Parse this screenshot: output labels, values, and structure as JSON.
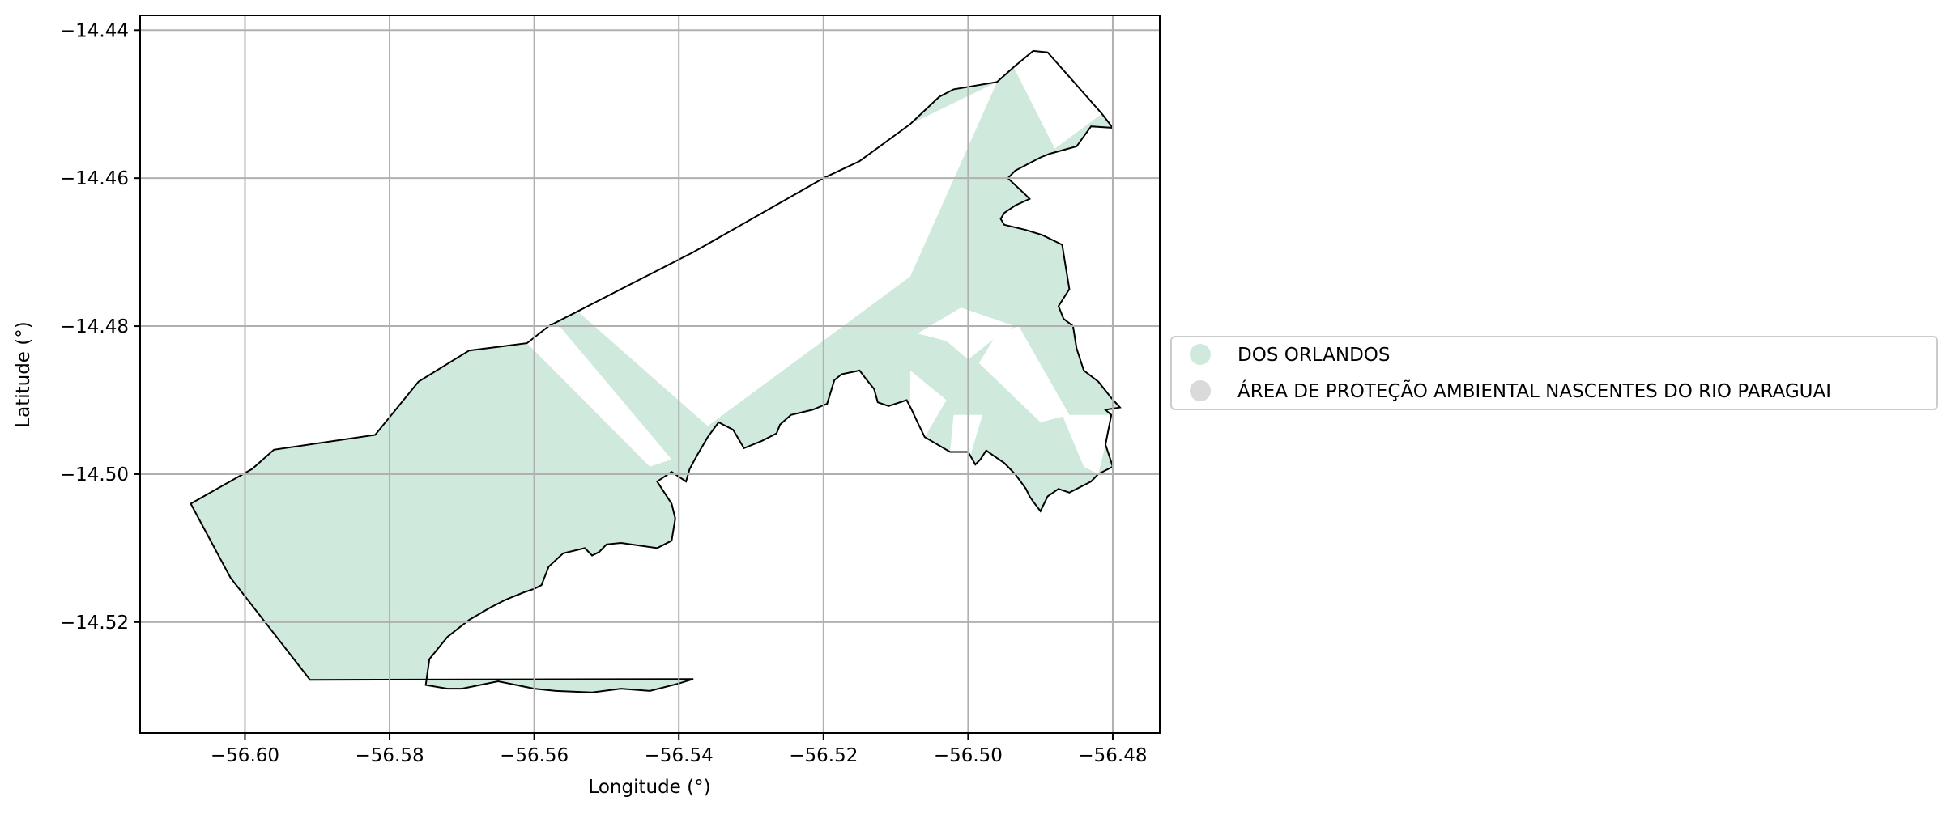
{
  "chart_data": {
    "type": "map",
    "xlabel": "Longitude (°)",
    "ylabel": "Latitude (°)",
    "xlim": [
      -56.6145,
      -56.4735
    ],
    "ylim": [
      -14.535,
      -14.438
    ],
    "xticks": [
      -56.6,
      -56.58,
      -56.56,
      -56.54,
      -56.52,
      -56.5,
      -56.48
    ],
    "yticks": [
      -14.44,
      -14.46,
      -14.48,
      -14.5,
      -14.52
    ],
    "xtick_labels": [
      "−56.60",
      "−56.58",
      "−56.56",
      "−56.54",
      "−56.52",
      "−56.50",
      "−56.48"
    ],
    "ytick_labels": [
      "−14.44",
      "−14.46",
      "−14.48",
      "−14.50",
      "−14.52"
    ],
    "grid": true,
    "legend_position": "right, outside plot",
    "legend": [
      {
        "label": "DOS ORLANDOS",
        "color": "#cfeadc"
      },
      {
        "label": "ÁREA DE PROTEÇÃO AMBIENTAL NASCENTES DO RIO PARAGUAI",
        "color": "#dadada"
      }
    ],
    "outline_color": "#000000",
    "fill_color": "#cfeadc",
    "outline": [
      [
        -56.6075,
        -14.504
      ],
      [
        -56.599,
        -14.4993
      ],
      [
        -56.596,
        -14.4967
      ],
      [
        -56.582,
        -14.4947
      ],
      [
        -56.576,
        -14.4875
      ],
      [
        -56.569,
        -14.4833
      ],
      [
        -56.561,
        -14.4823
      ],
      [
        -56.558,
        -14.48
      ],
      [
        -56.554,
        -14.478
      ],
      [
        -56.538,
        -14.47
      ],
      [
        -56.52,
        -14.46
      ],
      [
        -56.515,
        -14.4577
      ],
      [
        -56.508,
        -14.4527
      ],
      [
        -56.504,
        -14.449
      ],
      [
        -56.502,
        -14.448
      ],
      [
        -56.496,
        -14.447
      ],
      [
        -56.4937,
        -14.445
      ],
      [
        -56.491,
        -14.4428
      ],
      [
        -56.489,
        -14.443
      ],
      [
        -56.4815,
        -14.4513
      ],
      [
        -56.48,
        -14.4532
      ],
      [
        -56.483,
        -14.453
      ],
      [
        -56.485,
        -14.4557
      ],
      [
        -56.4887,
        -14.4567
      ],
      [
        -56.49,
        -14.4572
      ],
      [
        -56.4935,
        -14.459
      ],
      [
        -56.4945,
        -14.46
      ],
      [
        -56.492,
        -14.4623
      ],
      [
        -56.4915,
        -14.4628
      ],
      [
        -56.4935,
        -14.4637
      ],
      [
        -56.495,
        -14.4647
      ],
      [
        -56.4955,
        -14.4655
      ],
      [
        -56.495,
        -14.4663
      ],
      [
        -56.492,
        -14.467
      ],
      [
        -56.4897,
        -14.4677
      ],
      [
        -56.487,
        -14.469
      ],
      [
        -56.4865,
        -14.472
      ],
      [
        -56.486,
        -14.475
      ],
      [
        -56.4875,
        -14.4773
      ],
      [
        -56.4868,
        -14.479
      ],
      [
        -56.4855,
        -14.48
      ],
      [
        -56.485,
        -14.483
      ],
      [
        -56.484,
        -14.486
      ],
      [
        -56.482,
        -14.4875
      ],
      [
        -56.4802,
        -14.4897
      ],
      [
        -56.479,
        -14.491
      ],
      [
        -56.481,
        -14.4913
      ],
      [
        -56.4802,
        -14.492
      ],
      [
        -56.481,
        -14.496
      ],
      [
        -56.48,
        -14.499
      ],
      [
        -56.482,
        -14.5
      ],
      [
        -56.483,
        -14.501
      ],
      [
        -56.486,
        -14.5025
      ],
      [
        -56.4875,
        -14.502
      ],
      [
        -56.489,
        -14.503
      ],
      [
        -56.49,
        -14.505
      ],
      [
        -56.491,
        -14.5037
      ],
      [
        -56.4915,
        -14.503
      ],
      [
        -56.492,
        -14.502
      ],
      [
        -56.4935,
        -14.5
      ],
      [
        -56.495,
        -14.4985
      ],
      [
        -56.4965,
        -14.4975
      ],
      [
        -56.4975,
        -14.4968
      ],
      [
        -56.4983,
        -14.498
      ],
      [
        -56.499,
        -14.4987
      ],
      [
        -56.5,
        -14.497
      ],
      [
        -56.5025,
        -14.497
      ],
      [
        -56.506,
        -14.495
      ],
      [
        -56.507,
        -14.493
      ],
      [
        -56.5078,
        -14.4913
      ],
      [
        -56.5085,
        -14.49
      ],
      [
        -56.511,
        -14.4908
      ],
      [
        -56.5125,
        -14.4903
      ],
      [
        -56.513,
        -14.4885
      ],
      [
        -56.514,
        -14.4873
      ],
      [
        -56.515,
        -14.486
      ],
      [
        -56.5175,
        -14.4865
      ],
      [
        -56.5185,
        -14.4873
      ],
      [
        -56.5195,
        -14.4905
      ],
      [
        -56.5215,
        -14.4913
      ],
      [
        -56.5245,
        -14.492
      ],
      [
        -56.526,
        -14.4933
      ],
      [
        -56.5265,
        -14.4945
      ],
      [
        -56.5285,
        -14.4955
      ],
      [
        -56.531,
        -14.4965
      ],
      [
        -56.5325,
        -14.494
      ],
      [
        -56.5345,
        -14.493
      ],
      [
        -56.536,
        -14.495
      ],
      [
        -56.5375,
        -14.4975
      ],
      [
        -56.5385,
        -14.4993
      ],
      [
        -56.539,
        -14.501
      ],
      [
        -56.541,
        -14.4997
      ],
      [
        -56.543,
        -14.501
      ],
      [
        -56.541,
        -14.504
      ],
      [
        -56.5405,
        -14.506
      ],
      [
        -56.541,
        -14.509
      ],
      [
        -56.542,
        -14.5095
      ],
      [
        -56.543,
        -14.51
      ],
      [
        -56.548,
        -14.5093
      ],
      [
        -56.55,
        -14.5095
      ],
      [
        -56.551,
        -14.5105
      ],
      [
        -56.552,
        -14.511
      ],
      [
        -56.553,
        -14.51
      ],
      [
        -56.556,
        -14.5107
      ],
      [
        -56.558,
        -14.5125
      ],
      [
        -56.559,
        -14.515
      ],
      [
        -56.56,
        -14.5155
      ],
      [
        -56.5615,
        -14.516
      ],
      [
        -56.564,
        -14.517
      ],
      [
        -56.566,
        -14.518
      ],
      [
        -56.569,
        -14.5197
      ],
      [
        -56.572,
        -14.522
      ],
      [
        -56.5745,
        -14.525
      ],
      [
        -56.575,
        -14.5285
      ],
      [
        -56.572,
        -14.529
      ],
      [
        -56.57,
        -14.529
      ],
      [
        -56.565,
        -14.528
      ],
      [
        -56.56,
        -14.529
      ],
      [
        -56.557,
        -14.5293
      ],
      [
        -56.552,
        -14.5295
      ],
      [
        -56.548,
        -14.529
      ],
      [
        -56.544,
        -14.5293
      ],
      [
        -56.54,
        -14.5283
      ],
      [
        -56.538,
        -14.5277
      ],
      [
        -56.589,
        -14.5275
      ],
      [
        -56.581,
        -14.528
      ],
      [
        -56.588,
        -14.5278
      ],
      [
        -56.591,
        -14.5278
      ],
      [
        -56.602,
        -14.514
      ],
      [
        -56.6075,
        -14.504
      ]
    ]
  }
}
